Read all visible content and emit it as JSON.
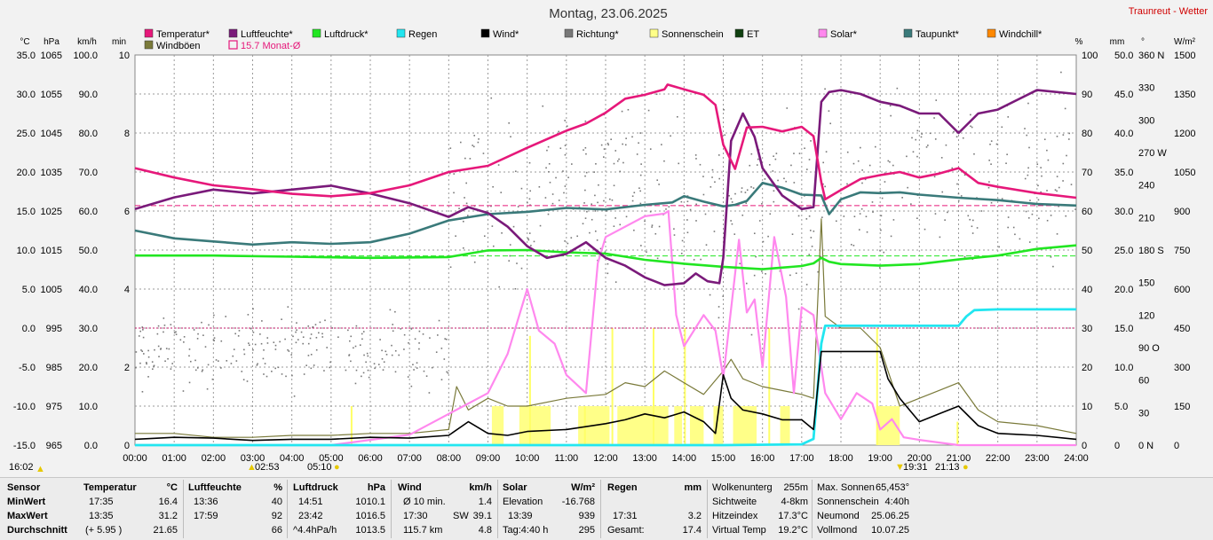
{
  "chart_data": {
    "type": "line",
    "title": "Montag, 23.06.2025",
    "station": "Traunreut - Wetter",
    "x_ticks": [
      "00:00",
      "01:00",
      "02:00",
      "03:00",
      "04:00",
      "05:00",
      "06:00",
      "07:00",
      "08:00",
      "09:00",
      "10:00",
      "11:00",
      "12:00",
      "13:00",
      "14:00",
      "15:00",
      "16:00",
      "17:00",
      "18:00",
      "19:00",
      "20:00",
      "21:00",
      "22:00",
      "23:00",
      "24:00"
    ],
    "xlim": [
      0,
      24
    ],
    "grid": true,
    "left_axes": [
      {
        "unit": "°C",
        "ticks": [
          "35.0",
          "30.0",
          "25.0",
          "20.0",
          "15.0",
          "10.0",
          "5.0",
          "0.0",
          "-5.0",
          "-10.0",
          "-15.0"
        ]
      },
      {
        "unit": "hPa",
        "ticks": [
          "1065",
          "1055",
          "1045",
          "1035",
          "1025",
          "1015",
          "1005",
          "995",
          "985",
          "975",
          "965"
        ]
      },
      {
        "unit": "km/h",
        "ticks": [
          "100.0",
          "90.0",
          "80.0",
          "70.0",
          "60.0",
          "50.0",
          "40.0",
          "30.0",
          "20.0",
          "10.0",
          "0.0"
        ]
      },
      {
        "unit": "min",
        "ticks": [
          "10",
          "",
          "8",
          "",
          "6",
          "",
          "4",
          "",
          "2",
          "",
          "0"
        ]
      }
    ],
    "right_axes": [
      {
        "unit": "%",
        "ticks": [
          "100",
          "90",
          "80",
          "70",
          "60",
          "50",
          "40",
          "30",
          "20",
          "10",
          "0"
        ]
      },
      {
        "unit": "mm",
        "ticks": [
          "50.0",
          "45.0",
          "40.0",
          "35.0",
          "30.0",
          "25.0",
          "20.0",
          "15.0",
          "10.0",
          "5.0",
          "0"
        ]
      },
      {
        "unit": "°",
        "ticks": [
          "360 N",
          "330",
          "300",
          "270 W",
          "240",
          "210",
          "180 S",
          "150",
          "120",
          "90 O",
          "60",
          "30",
          "0 N"
        ]
      },
      {
        "unit": "W/m²",
        "ticks": [
          "1500",
          "1350",
          "1200",
          "1050",
          "900",
          "750",
          "600",
          "450",
          "300",
          "150",
          "0"
        ]
      }
    ],
    "legend": [
      {
        "name": "Temperatur*",
        "color": "#e6187a",
        "shape": "box"
      },
      {
        "name": "Luftfeuchte*",
        "color": "#7a1a7a",
        "shape": "box"
      },
      {
        "name": "Luftdruck*",
        "color": "#22e622",
        "shape": "box"
      },
      {
        "name": "Regen",
        "color": "#22e6f0",
        "shape": "box"
      },
      {
        "name": "Wind*",
        "color": "#000000",
        "shape": "box"
      },
      {
        "name": "Richtung*",
        "color": "#787878",
        "shape": "box"
      },
      {
        "name": "Sonnenschein",
        "color": "#ffff88",
        "shape": "box"
      },
      {
        "name": "ET",
        "color": "#104010",
        "shape": "box"
      },
      {
        "name": "Solar*",
        "color": "#ff88ee",
        "shape": "box"
      },
      {
        "name": "Taupunkt*",
        "color": "#3a7a7a",
        "shape": "box"
      },
      {
        "name": "Windchill*",
        "color": "#ff8800",
        "shape": "box"
      },
      {
        "name": "Windböen",
        "color": "#7a7a3a",
        "shape": "box"
      },
      {
        "name": "15.7 Monat-Ø",
        "color": "#e6187a",
        "shape": "outline"
      }
    ],
    "reference_lines": [
      {
        "axis": "temperature",
        "value": 15.7,
        "color": "#e6187a"
      },
      {
        "axis": "pressure",
        "value": 1013.5,
        "color": "#22e622"
      },
      {
        "axis": "temperature",
        "value": 0.0,
        "color": "#c0186a"
      }
    ],
    "series": [
      {
        "name": "Temperatur*",
        "axis": "°C",
        "color": "#e6187a",
        "x": [
          0,
          1,
          2,
          3,
          4,
          5,
          6,
          7,
          8,
          9,
          10,
          11,
          11.5,
          12,
          12.5,
          13,
          13.5,
          13.58,
          14,
          14.5,
          14.8,
          15,
          15.3,
          15.6,
          16,
          16.5,
          17,
          17.3,
          17.5,
          17.6,
          18,
          18.5,
          19,
          19.5,
          20,
          20.5,
          21,
          21.5,
          22,
          23,
          24
        ],
        "y": [
          20.5,
          19.3,
          18.3,
          17.8,
          17.2,
          16.9,
          17.3,
          18.3,
          20.0,
          20.8,
          23.1,
          25.3,
          26.2,
          27.6,
          29.4,
          29.9,
          30.6,
          31.2,
          30.6,
          29.9,
          28.6,
          23.5,
          20.4,
          25.7,
          25.8,
          25.2,
          25.8,
          24.6,
          18.7,
          16.5,
          17.7,
          19.1,
          19.6,
          20.0,
          19.3,
          19.8,
          20.5,
          18.6,
          18.1,
          17.3,
          16.7
        ]
      },
      {
        "name": "Luftfeuchte*",
        "axis": "%",
        "color": "#7a1a7a",
        "x": [
          0,
          1,
          2,
          3,
          4,
          5,
          6,
          7,
          8,
          8.5,
          9,
          9.5,
          10,
          10.5,
          11,
          11.5,
          12,
          12.5,
          13,
          13.5,
          14,
          14.3,
          14.6,
          14.9,
          15,
          15.2,
          15.5,
          15.8,
          16,
          16.5,
          17,
          17.3,
          17.5,
          17.7,
          18,
          18.5,
          19,
          19.5,
          20,
          20.5,
          21,
          21.5,
          22,
          23,
          24
        ],
        "y": [
          60.5,
          63.5,
          65.5,
          64.5,
          65.5,
          66.5,
          64.5,
          62,
          58.5,
          61,
          59.5,
          56,
          51,
          48,
          49,
          52,
          48,
          46,
          43,
          41,
          41.5,
          44,
          42,
          41.5,
          48,
          78,
          85,
          79,
          71,
          64,
          60.5,
          61,
          88,
          90.5,
          91,
          90,
          88,
          87,
          85,
          85,
          80,
          85,
          86,
          91,
          90
        ]
      },
      {
        "name": "Luftdruck*",
        "axis": "hPa",
        "color": "#22e622",
        "x": [
          0,
          2,
          4,
          6,
          8,
          9,
          10,
          11,
          12,
          13,
          13.5,
          14,
          15,
          16,
          17,
          17.3,
          17.5,
          17.7,
          18,
          19,
          20,
          21,
          22,
          23,
          24
        ],
        "y": [
          1013.6,
          1013.6,
          1013.3,
          1013.0,
          1013.2,
          1014.9,
          1015.0,
          1014.4,
          1014.1,
          1012.5,
          1012.0,
          1011.5,
          1010.7,
          1010.1,
          1010.9,
          1011.6,
          1013.0,
          1012.0,
          1011.4,
          1011.0,
          1011.4,
          1012.6,
          1013.6,
          1015.3,
          1016.2
        ]
      },
      {
        "name": "Taupunkt*",
        "axis": "°C",
        "color": "#3a7a7a",
        "x": [
          0,
          1,
          2,
          3,
          4,
          5,
          6,
          7,
          8,
          9,
          10,
          11,
          12,
          13,
          13.7,
          14,
          14.5,
          15,
          15.3,
          15.6,
          16,
          16.5,
          17,
          17.5,
          17.7,
          18,
          18.5,
          19,
          19.5,
          20,
          21,
          22,
          23,
          24
        ],
        "y": [
          12.5,
          11.5,
          11.1,
          10.7,
          11.0,
          10.8,
          11.0,
          12.1,
          13.8,
          14.6,
          14.9,
          15.4,
          15.2,
          15.8,
          16.1,
          16.9,
          16.2,
          15.6,
          15.8,
          16.3,
          18.6,
          18.0,
          17.1,
          17.0,
          14.6,
          16.5,
          17.4,
          17.3,
          17.4,
          17.1,
          16.7,
          16.4,
          15.9,
          15.7
        ]
      },
      {
        "name": "Regen",
        "axis": "mm",
        "color": "#22e6f0",
        "x": [
          0,
          15.0,
          17.0,
          17.3,
          17.5,
          17.6,
          18.0,
          19.0,
          20.0,
          21.0,
          21.2,
          21.4,
          22.0,
          23.0,
          24.0
        ],
        "y": [
          0,
          0,
          0.1,
          0.8,
          13.0,
          15.3,
          15.3,
          15.3,
          15.3,
          15.3,
          16.5,
          17.3,
          17.4,
          17.4,
          17.4
        ]
      },
      {
        "name": "Wind*",
        "axis": "km/h",
        "color": "#000000",
        "x": [
          0,
          1,
          2,
          3,
          4,
          5,
          6,
          7,
          8,
          8.5,
          9,
          9.5,
          10,
          11,
          12,
          12.5,
          13,
          13.5,
          14,
          14.5,
          14.8,
          15,
          15.2,
          15.5,
          16,
          16.5,
          17,
          17.3,
          17.5,
          18,
          18.5,
          19,
          19.2,
          19.5,
          20,
          20.5,
          21,
          21.5,
          22,
          23,
          24
        ],
        "y": [
          1.5,
          2,
          1.8,
          1.2,
          1.5,
          1.5,
          2,
          1.8,
          2.5,
          6,
          3,
          2.5,
          3.5,
          4,
          5.5,
          6.5,
          8,
          7,
          8.5,
          6,
          3,
          18,
          12,
          9,
          8,
          6.5,
          6.5,
          4,
          24,
          24,
          24,
          24,
          17,
          12,
          6,
          8,
          10,
          5,
          3,
          2.5,
          1.5
        ]
      },
      {
        "name": "Solar*",
        "axis": "W/m²",
        "color": "#ff88ee",
        "x": [
          0,
          5,
          6,
          7,
          8,
          9,
          9.5,
          10,
          10.3,
          10.7,
          11,
          11.5,
          11.8,
          12,
          13,
          13.5,
          13.6,
          13.8,
          14,
          14.5,
          14.8,
          15,
          15.4,
          15.6,
          15.8,
          16,
          16.3,
          16.6,
          16.8,
          17,
          17.3,
          17.6,
          18,
          18.4,
          18.8,
          19,
          19.3,
          19.6,
          20,
          21,
          22,
          24
        ],
        "y": [
          0,
          0,
          20,
          40,
          120,
          200,
          350,
          600,
          440,
          390,
          270,
          200,
          700,
          800,
          880,
          890,
          900,
          500,
          380,
          500,
          440,
          260,
          790,
          510,
          560,
          300,
          800,
          570,
          200,
          530,
          500,
          200,
          100,
          200,
          160,
          60,
          100,
          30,
          20,
          0,
          0,
          0
        ]
      },
      {
        "name": "Windböen",
        "axis": "km/h",
        "color": "#7a7a3a",
        "x": [
          0,
          1,
          2,
          3,
          4,
          5,
          6,
          7,
          8,
          8.2,
          8.5,
          9,
          9.5,
          10,
          11,
          12,
          12.5,
          13,
          13.5,
          14,
          14.5,
          15,
          15.2,
          15.5,
          16,
          16.5,
          17,
          17.3,
          17.5,
          17.6,
          18,
          18.5,
          19,
          19.2,
          19.5,
          20,
          20.5,
          21,
          21.5,
          22,
          23,
          24
        ],
        "y": [
          3,
          3,
          2,
          2,
          2.5,
          2.5,
          3,
          3,
          4,
          15,
          9,
          12,
          10,
          10,
          12,
          13,
          16,
          15,
          19,
          16,
          13,
          19,
          22,
          17,
          15,
          14,
          13,
          12,
          58,
          33,
          30,
          30,
          25,
          19,
          10,
          12,
          14,
          16,
          9,
          6,
          5,
          3
        ]
      }
    ],
    "sun_times": {
      "left": "16:02",
      "sunrise": "02:53",
      "dawn": "05:10",
      "sunset": "19:31",
      "dusk": "21:13"
    }
  },
  "stats": {
    "row_labels": [
      "Sensor",
      "MinWert",
      "MaxWert",
      "Durchschnitt"
    ],
    "temperatur": {
      "header": "Temperatur",
      "unit": "°C",
      "min_time": "17:35",
      "min": "16.4",
      "max_time": "13:35",
      "max": "31.2",
      "avg_note": "(+ 5.95 )",
      "avg": "21.65"
    },
    "luftfeuchte": {
      "header": "Luftfeuchte",
      "unit": "%",
      "min_time": "13:36",
      "min": "40",
      "max_time": "17:59",
      "max": "92",
      "avg": "66"
    },
    "luftdruck": {
      "header": "Luftdruck",
      "unit": "hPa",
      "min_time": "14:51",
      "min": "1010.1",
      "max_time": "23:42",
      "max": "1016.5",
      "avg_note": "^4.4hPa/h",
      "avg": "1013.5"
    },
    "wind": {
      "header": "Wind",
      "unit": "km/h",
      "r1_label": "Ø 10 min.",
      "r1_val": "1.4",
      "r2_time": "17:30",
      "r2_dir": "SW",
      "r2_val": "39.1",
      "r3_dist": "115.7 km",
      "r3_val": "4.8"
    },
    "solar": {
      "header": "Solar",
      "unit": "W/m²",
      "r1_label": "Elevation",
      "r1_val": "-16.768",
      "r2_time": "13:39",
      "r2_val": "939",
      "r3_label": "Tag:4:40 h",
      "r3_val": "295"
    },
    "regen": {
      "header": "Regen",
      "unit": "mm",
      "r2_time": "17:31",
      "r2_val": "3.2",
      "r3_label": "Gesamt:",
      "r3_val": "17.4"
    },
    "extra1": {
      "r0_label": "Wolkenunterg",
      "r0_val": "255m",
      "r1_label": "Sichtweite",
      "r1_val": "4-8km",
      "r2_label": "Hitzeindex",
      "r2_val": "17.3°C",
      "r3_label": "Virtual Temp",
      "r3_val": "19.2°C"
    },
    "extra2": {
      "r0_label": "Max. Sonnen",
      "r0_val": "65,453°",
      "r1_label": "Sonnenschein",
      "r1_val": "4:40h",
      "r2_label": "Neumond",
      "r2_val": "25.06.25",
      "r3_label": "Vollmond",
      "r3_val": "10.07.25"
    }
  }
}
